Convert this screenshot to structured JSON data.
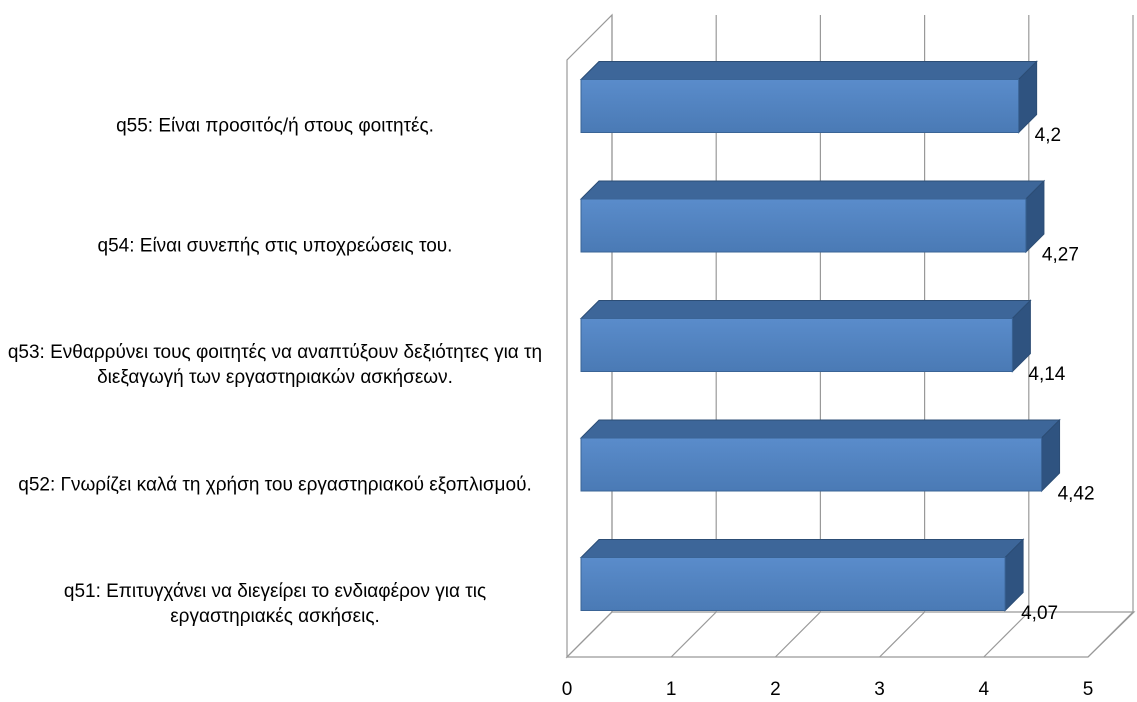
{
  "chart_data": {
    "type": "bar",
    "orientation": "horizontal",
    "three_d": true,
    "categories": [
      "q55: Είναι προσιτός/ή στους φοιτητές.",
      "q54: Είναι συνεπής στις υποχρεώσεις του.",
      "q53: Ενθαρρύνει τους φοιτητές να αναπτύξουν δεξιότητες για τη διεξαγωγή των εργαστηριακών ασκήσεων.",
      "q52: Γνωρίζει καλά τη χρήση του εργαστηριακού εξοπλισμού.",
      "q51: Επιτυγχάνει να διεγείρει το ενδιαφέρον για τις εργαστηριακές ασκήσεις."
    ],
    "values": [
      4.2,
      4.27,
      4.14,
      4.42,
      4.07
    ],
    "value_labels": [
      "4,2",
      "4,27",
      "4,14",
      "4,42",
      "4,07"
    ],
    "color": "#4f81bd",
    "xlim": [
      0,
      5
    ],
    "xticks": [
      0,
      1,
      2,
      3,
      4,
      5
    ],
    "grid": true
  }
}
